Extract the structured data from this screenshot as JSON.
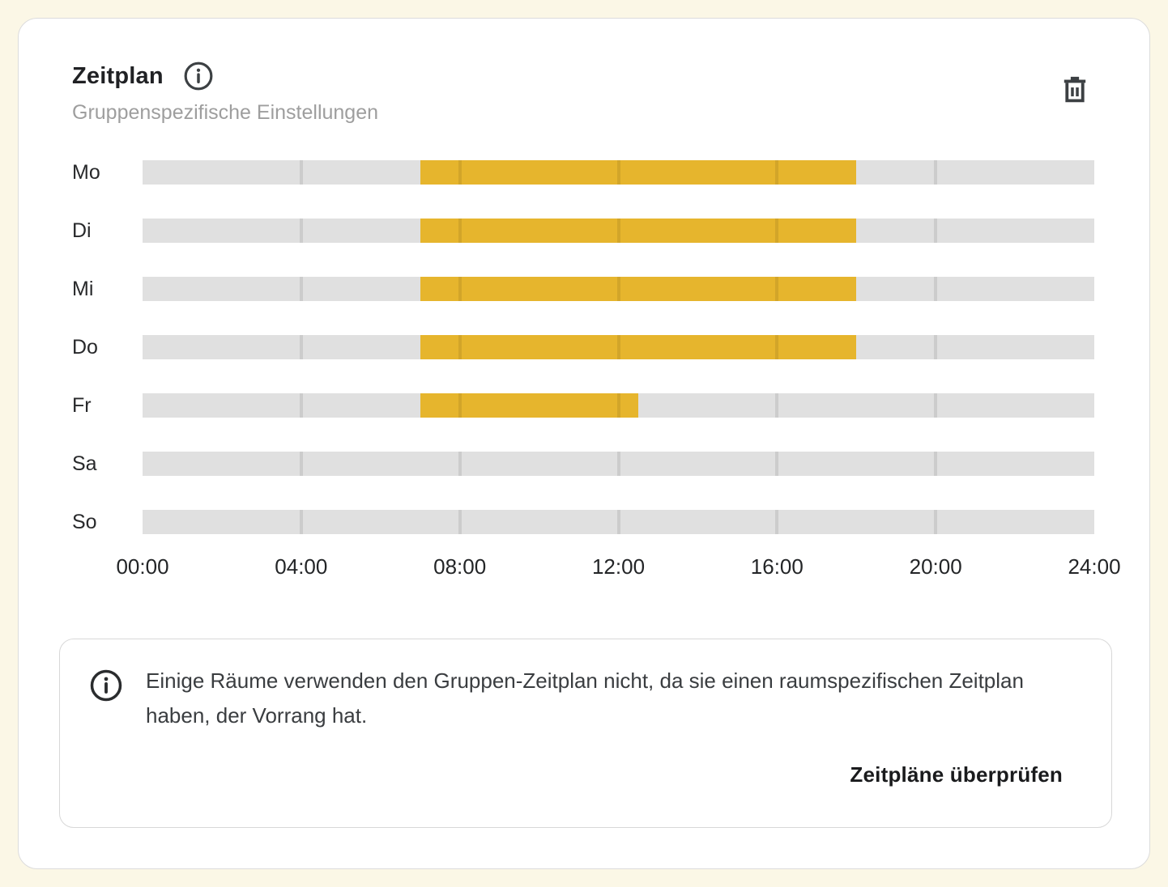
{
  "theme": {
    "page_bg": "#FBF7E6",
    "card_bg": "#FFFFFF",
    "card_border": "#DCDCDC",
    "track_color": "#E0E0E0",
    "active_color": "#E6B52D",
    "gridline_color": "rgba(0,0,0,0.085)",
    "title_color": "#202124",
    "subtitle_color": "#9E9E9E",
    "icon_color": "#3C4043",
    "notice_border": "#D8D8D8"
  },
  "header": {
    "title": "Zeitplan",
    "subtitle": "Gruppenspezifische Einstellungen",
    "info_icon": "info-circle-icon",
    "delete_icon": "trash-icon"
  },
  "chart_data": {
    "type": "schedule-timeline",
    "title": "Zeitplan",
    "x_axis": {
      "ticks": [
        "00:00",
        "04:00",
        "08:00",
        "12:00",
        "16:00",
        "20:00",
        "24:00"
      ],
      "range_hours": [
        0,
        24
      ],
      "gridline_interval_hours": 4
    },
    "rows": [
      {
        "day": "Mo",
        "segments": [
          {
            "start": "07:00",
            "end": "18:00"
          }
        ]
      },
      {
        "day": "Di",
        "segments": [
          {
            "start": "07:00",
            "end": "18:00"
          }
        ]
      },
      {
        "day": "Mi",
        "segments": [
          {
            "start": "07:00",
            "end": "18:00"
          }
        ]
      },
      {
        "day": "Do",
        "segments": [
          {
            "start": "07:00",
            "end": "18:00"
          }
        ]
      },
      {
        "day": "Fr",
        "segments": [
          {
            "start": "07:00",
            "end": "12:30"
          }
        ]
      },
      {
        "day": "Sa",
        "segments": []
      },
      {
        "day": "So",
        "segments": []
      }
    ],
    "legend": "none",
    "active_color": "#E6B52D",
    "track_color": "#E0E0E0"
  },
  "notice": {
    "icon": "info-circle-icon",
    "text": "Einige Räume verwenden den Gruppen-Zeitplan nicht, da sie einen raumspezifischen Zeitplan haben, der Vorrang hat.",
    "action_label": "Zeitpläne überprüfen"
  }
}
